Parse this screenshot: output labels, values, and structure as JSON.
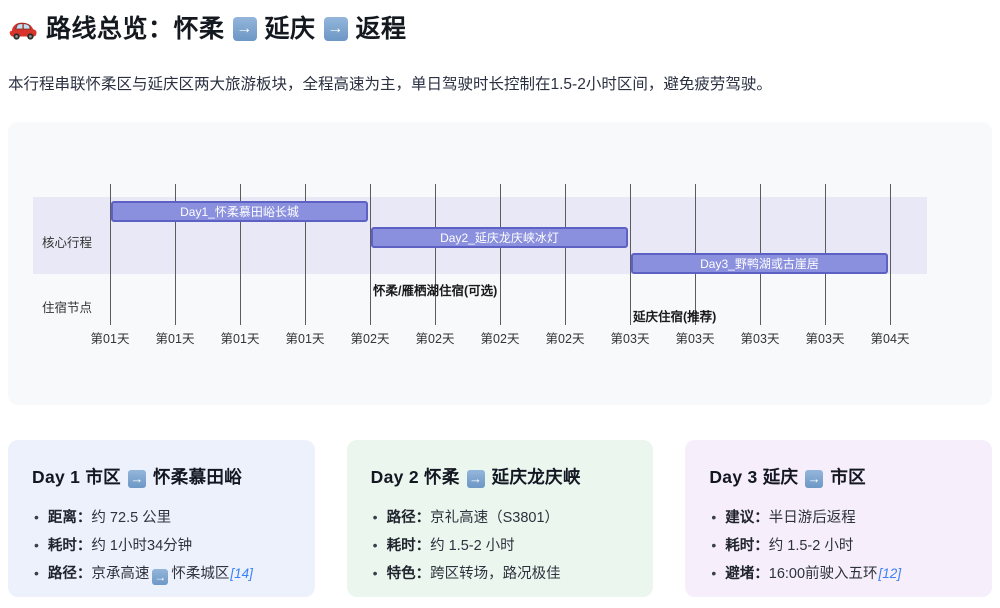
{
  "header": {
    "title_part1": "路线总览：怀柔",
    "title_part2": "延庆",
    "title_part3": "返程",
    "car_icon": "red-car-emoji",
    "arrow_icon": "→"
  },
  "intro": "本行程串联怀柔区与延庆区两大旅游板块，全程高速为主，单日驾驶时长控制在1.5-2小时区间，避免疲劳驾驶。",
  "chart_data": {
    "type": "gantt",
    "axis_ticks": [
      "第01天",
      "第01天",
      "第01天",
      "第01天",
      "第02天",
      "第02天",
      "第02天",
      "第02天",
      "第03天",
      "第03天",
      "第03天",
      "第03天",
      "第04天"
    ],
    "ticks_per_day": 4,
    "sections": [
      {
        "name": "核心行程",
        "rows": [
          0,
          2
        ]
      },
      {
        "name": "住宿节点",
        "rows": [
          3,
          4
        ]
      }
    ],
    "tasks": [
      {
        "label": "Day1_怀柔慕田峪长城",
        "row": 0,
        "start_tick": 0,
        "end_tick": 4
      },
      {
        "label": "Day2_延庆龙庆峡冰灯",
        "row": 1,
        "start_tick": 4,
        "end_tick": 8
      },
      {
        "label": "Day3_野鸭湖或古崖居",
        "row": 2,
        "start_tick": 8,
        "end_tick": 12
      }
    ],
    "milestones": [
      {
        "label": "怀柔/雁栖湖住宿(可选)",
        "row": 3,
        "tick": 4
      },
      {
        "label": "延庆住宿(推荐)",
        "row": 4,
        "tick": 8
      }
    ],
    "colors": {
      "task_fill": "#8a90dd",
      "task_border": "#5d61c3",
      "section_band": "#e8e8f7",
      "grid_line": "#5c5c5c",
      "axis_text": "#333333"
    }
  },
  "day_cards": [
    {
      "title_before_arrow": "Day 1 市区",
      "title_after_arrow": "怀柔慕田峪",
      "bg_color": "#edf1fc",
      "items": [
        {
          "label": "距离：",
          "text": "约 72.5 公里",
          "arrow_then": "",
          "citation": ""
        },
        {
          "label": "耗时：",
          "text": "约 1小时34分钟",
          "arrow_then": "",
          "citation": ""
        },
        {
          "label": "路径：",
          "text": "京承高速",
          "arrow_then": "怀柔城区",
          "citation": "[14]"
        }
      ]
    },
    {
      "title_before_arrow": "Day 2 怀柔",
      "title_after_arrow": "延庆龙庆峡",
      "bg_color": "#ebf6ef",
      "items": [
        {
          "label": "路径：",
          "text": "京礼高速（S3801）",
          "arrow_then": "",
          "citation": ""
        },
        {
          "label": "耗时：",
          "text": "约 1.5-2 小时",
          "arrow_then": "",
          "citation": ""
        },
        {
          "label": "特色：",
          "text": "跨区转场，路况极佳",
          "arrow_then": "",
          "citation": ""
        }
      ]
    },
    {
      "title_before_arrow": "Day 3 延庆",
      "title_after_arrow": "市区",
      "bg_color": "#f6eefa",
      "items": [
        {
          "label": "建议：",
          "text": "半日游后返程",
          "arrow_then": "",
          "citation": ""
        },
        {
          "label": "耗时：",
          "text": "约 1.5-2 小时",
          "arrow_then": "",
          "citation": ""
        },
        {
          "label": "避堵：",
          "text": "16:00前驶入五环",
          "arrow_then": "",
          "citation": "[12]"
        }
      ]
    }
  ]
}
